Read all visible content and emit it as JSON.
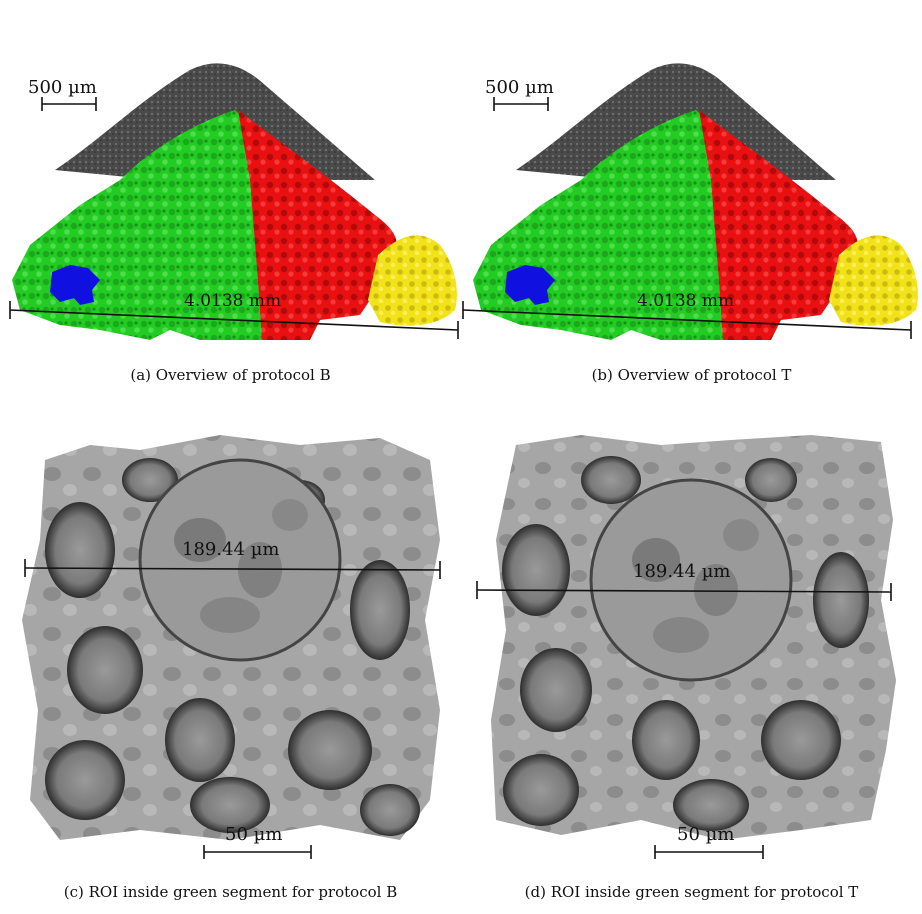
{
  "figure": {
    "panel_a": {
      "caption": "(a) Overview of protocol B",
      "scale_bar_label": "500 µm",
      "measure_label": "4.0138 mm"
    },
    "panel_b": {
      "caption": "(b) Overview of protocol T",
      "scale_bar_label": "500 µm",
      "measure_label": "4.0138 mm"
    },
    "panel_c": {
      "caption": "(c) ROI inside green segment for protocol B",
      "scale_bar_label": "50 µm",
      "measure_label": "189.44 µm"
    },
    "panel_d": {
      "caption": "(d) ROI inside green segment for protocol T",
      "scale_bar_label": "50 µm",
      "measure_label": "189.44 µm"
    }
  },
  "colors": {
    "segment_green": "#22cc22",
    "segment_red": "#e81010",
    "segment_yellow": "#f2e21a",
    "segment_blue": "#1010e0",
    "cap_gray": "#4a4a4a",
    "roi_gray": "#a8a8a8"
  }
}
